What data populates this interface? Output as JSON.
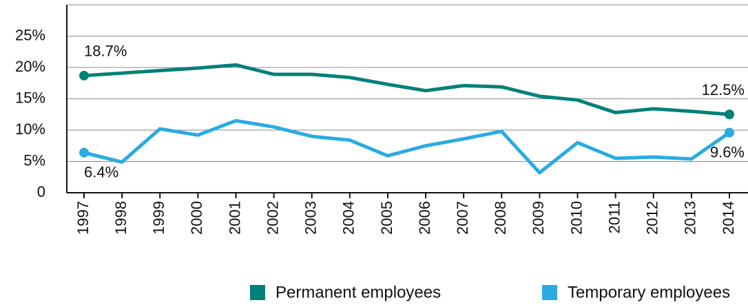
{
  "chart_data": {
    "type": "line",
    "categories": [
      "1997",
      "1998",
      "1999",
      "2000",
      "2001",
      "2002",
      "2003",
      "2004",
      "2005",
      "2006",
      "2007",
      "2008",
      "2009",
      "2010",
      "2011",
      "2012",
      "2013",
      "2014"
    ],
    "series": [
      {
        "name": "Permanent employees",
        "color": "#00807a",
        "values": [
          18.7,
          19.1,
          19.5,
          19.9,
          20.4,
          18.9,
          18.9,
          18.4,
          17.3,
          16.3,
          17.1,
          16.9,
          15.4,
          14.8,
          12.8,
          13.4,
          13.0,
          12.5
        ],
        "value_labels": [
          "18.7%",
          null,
          null,
          null,
          null,
          null,
          null,
          null,
          null,
          null,
          null,
          null,
          null,
          null,
          null,
          null,
          null,
          "12.5%"
        ]
      },
      {
        "name": "Temporary employees",
        "color": "#29abe2",
        "values": [
          6.4,
          4.9,
          10.2,
          9.2,
          11.5,
          10.5,
          9.0,
          8.4,
          5.9,
          7.5,
          8.6,
          9.8,
          3.2,
          8.0,
          5.5,
          5.7,
          5.4,
          9.6
        ],
        "value_labels": [
          "6.4%",
          null,
          null,
          null,
          null,
          null,
          null,
          null,
          null,
          null,
          null,
          null,
          null,
          null,
          null,
          null,
          null,
          "9.6%"
        ]
      }
    ],
    "ylim": [
      0,
      30
    ],
    "yticks": [
      0,
      {
        "value": 5,
        "label": "5%"
      },
      {
        "value": 10,
        "label": "10%"
      },
      {
        "value": 15,
        "label": "15%"
      },
      {
        "value": 20,
        "label": "20%"
      },
      {
        "value": 25,
        "label": "25%"
      }
    ],
    "grid": true,
    "legend": "bottom"
  }
}
